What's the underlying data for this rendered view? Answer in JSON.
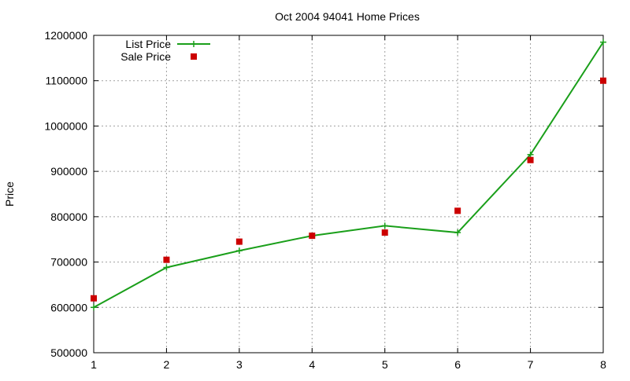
{
  "chart_data": {
    "type": "line",
    "title": "Oct 2004 94041 Home Prices",
    "xlabel": "",
    "ylabel": "Price",
    "x": [
      1,
      2,
      3,
      4,
      5,
      6,
      7,
      8
    ],
    "xlim": [
      1,
      8
    ],
    "ylim": [
      500000,
      1200000
    ],
    "xticks": [
      1,
      2,
      3,
      4,
      5,
      6,
      7,
      8
    ],
    "yticks": [
      500000,
      600000,
      700000,
      800000,
      900000,
      1000000,
      1100000,
      1200000
    ],
    "grid": true,
    "legend_position": "top-left",
    "series": [
      {
        "name": "List Price",
        "style": "line-with-plus-markers",
        "color": "#1a9f1a",
        "values": [
          600000,
          688000,
          725000,
          758000,
          780000,
          765000,
          937000,
          1185000
        ]
      },
      {
        "name": "Sale Price",
        "style": "square-markers",
        "color": "#cc0000",
        "values": [
          620000,
          705000,
          745000,
          758000,
          765000,
          813000,
          925000,
          1100000
        ]
      }
    ]
  }
}
